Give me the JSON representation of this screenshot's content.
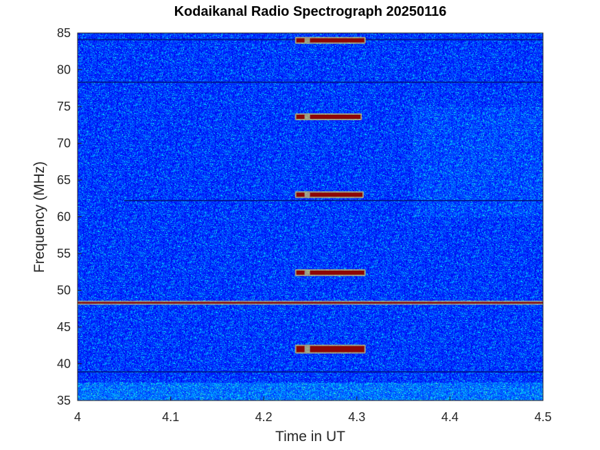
{
  "chart_data": {
    "type": "heatmap",
    "title": "Kodaikanal Radio Spectrograph  20250116",
    "xlabel": "Time in UT",
    "ylabel": "Frequency (MHz)",
    "xlim": [
      4.0,
      4.5
    ],
    "ylim": [
      35,
      85
    ],
    "x_ticks": [
      "4",
      "4.1",
      "4.2",
      "4.3",
      "4.4",
      "4.5"
    ],
    "y_ticks": [
      "35",
      "40",
      "45",
      "50",
      "55",
      "60",
      "65",
      "70",
      "75",
      "80",
      "85"
    ],
    "colormap": "jet",
    "grid": false,
    "background_level": "low",
    "steady_bands": [
      {
        "frequency_mhz": 48.3,
        "time_start": 4.0,
        "time_end": 4.5,
        "kind": "bright interference line"
      },
      {
        "frequency_mhz": 62.2,
        "time_start": 4.05,
        "time_end": 4.5,
        "kind": "dark line"
      },
      {
        "frequency_mhz": 38.9,
        "time_start": 4.0,
        "time_end": 4.5,
        "kind": "dark line"
      },
      {
        "frequency_mhz": 78.3,
        "time_start": 4.0,
        "time_end": 4.5,
        "kind": "dark line"
      },
      {
        "frequency_mhz": 84.1,
        "time_start": 4.0,
        "time_end": 4.5,
        "kind": "dark line"
      }
    ],
    "burst_segments": [
      {
        "frequency_mhz": 42.0,
        "time_start": 4.235,
        "time_end": 4.308,
        "intensity": "high"
      },
      {
        "frequency_mhz": 52.4,
        "time_start": 4.235,
        "time_end": 4.308,
        "intensity": "medium"
      },
      {
        "frequency_mhz": 63.0,
        "time_start": 4.235,
        "time_end": 4.306,
        "intensity": "medium"
      },
      {
        "frequency_mhz": 73.6,
        "time_start": 4.235,
        "time_end": 4.304,
        "intensity": "medium"
      },
      {
        "frequency_mhz": 84.0,
        "time_start": 4.235,
        "time_end": 4.308,
        "intensity": "medium"
      }
    ]
  }
}
